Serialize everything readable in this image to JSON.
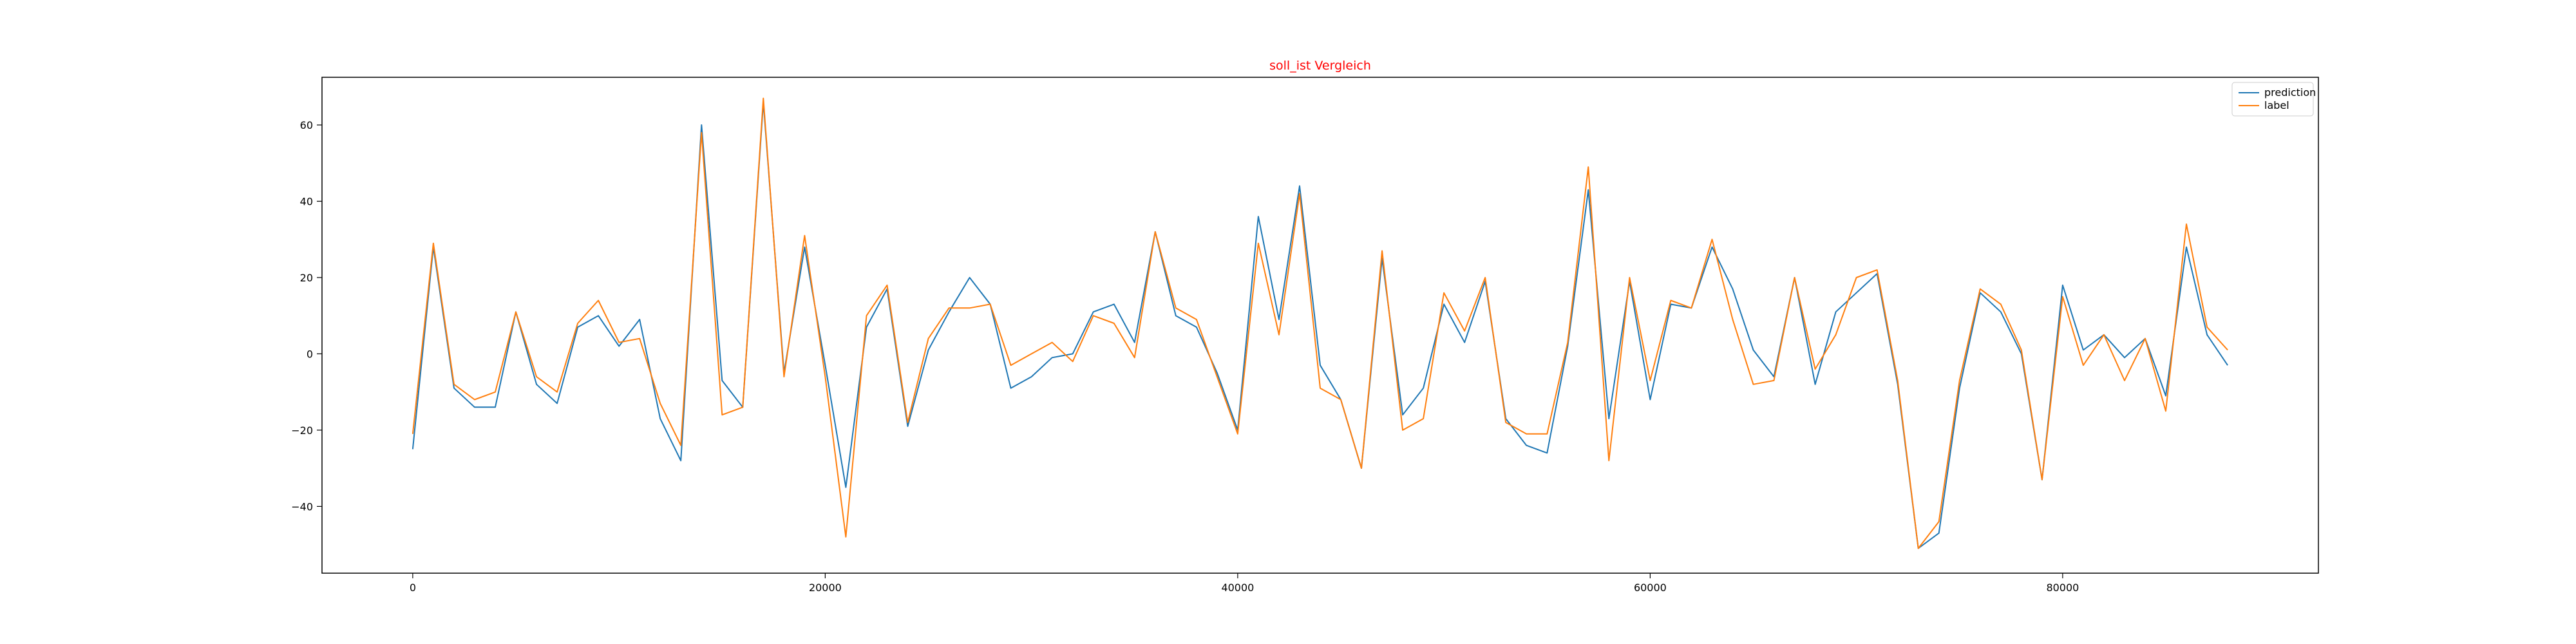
{
  "chart_data": {
    "type": "line",
    "title": "soll_ist Vergleich",
    "title_color": "#ff0000",
    "xlabel": "",
    "ylabel": "",
    "xlim": [
      -4400,
      92400
    ],
    "ylim": [
      -57.5,
      72.5
    ],
    "x_ticks": [
      0,
      20000,
      40000,
      60000,
      80000
    ],
    "x_tick_labels": [
      "0",
      "20000",
      "40000",
      "60000",
      "80000"
    ],
    "y_ticks": [
      -40,
      -20,
      0,
      20,
      40,
      60
    ],
    "y_tick_labels": [
      "−40",
      "−20",
      "0",
      "20",
      "40",
      "60"
    ],
    "grid": false,
    "legend_position": "top-right",
    "x": [
      0,
      1000,
      2000,
      3000,
      4000,
      5000,
      6000,
      7000,
      8000,
      9000,
      10000,
      11000,
      12000,
      13000,
      14000,
      15000,
      16000,
      17000,
      18000,
      19000,
      20000,
      21000,
      22000,
      23000,
      24000,
      25000,
      26000,
      27000,
      28000,
      29000,
      30000,
      31000,
      32000,
      33000,
      34000,
      35000,
      36000,
      37000,
      38000,
      39000,
      40000,
      41000,
      42000,
      43000,
      44000,
      45000,
      46000,
      47000,
      48000,
      49000,
      50000,
      51000,
      52000,
      53000,
      54000,
      55000,
      56000,
      57000,
      58000,
      59000,
      60000,
      61000,
      62000,
      63000,
      64000,
      65000,
      66000,
      67000,
      68000,
      69000,
      70000,
      71000,
      72000,
      73000,
      74000,
      75000,
      76000,
      77000,
      78000,
      79000,
      80000,
      81000,
      82000,
      83000,
      84000,
      85000,
      86000,
      87000,
      88000
    ],
    "series": [
      {
        "name": "prediction",
        "color": "#1f77b4",
        "values": [
          -25,
          28,
          -9,
          -14,
          -14,
          11,
          -8,
          -13,
          7,
          10,
          2,
          9,
          -17,
          -28,
          60,
          -7,
          -14,
          66,
          -5,
          28,
          -3,
          -35,
          7,
          17,
          -19,
          1,
          11,
          20,
          13,
          -9,
          -6,
          -1,
          0,
          11,
          13,
          3,
          32,
          10,
          7,
          -5,
          -20,
          36,
          9,
          44,
          -3,
          -12,
          -30,
          25,
          -16,
          -9,
          13,
          3,
          19,
          -17,
          -24,
          -26,
          2,
          43,
          -17,
          19,
          -12,
          13,
          12,
          28,
          17,
          1,
          -6,
          20,
          -8,
          11,
          16,
          21,
          -8,
          -51,
          -47,
          -9,
          16,
          11,
          0,
          -33,
          18,
          1,
          5,
          -1,
          4,
          -11,
          28,
          5,
          -3
        ]
      },
      {
        "name": "label",
        "color": "#ff7f0e",
        "values": [
          -21,
          29,
          -8,
          -12,
          -10,
          11,
          -6,
          -10,
          8,
          14,
          3,
          4,
          -13,
          -24,
          58,
          -16,
          -14,
          67,
          -6,
          31,
          -6,
          -48,
          10,
          18,
          -18,
          4,
          12,
          12,
          13,
          -3,
          0,
          3,
          -2,
          10,
          8,
          -1,
          32,
          12,
          9,
          -6,
          -21,
          29,
          5,
          42,
          -9,
          -12,
          -30,
          27,
          -20,
          -17,
          16,
          6,
          20,
          -18,
          -21,
          -21,
          3,
          49,
          -28,
          20,
          -7,
          14,
          12,
          30,
          9,
          -8,
          -7,
          20,
          -4,
          5,
          20,
          22,
          -7,
          -51,
          -44,
          -7,
          17,
          13,
          1,
          -33,
          15,
          -3,
          5,
          -7,
          4,
          -15,
          34,
          7,
          1
        ]
      }
    ]
  }
}
